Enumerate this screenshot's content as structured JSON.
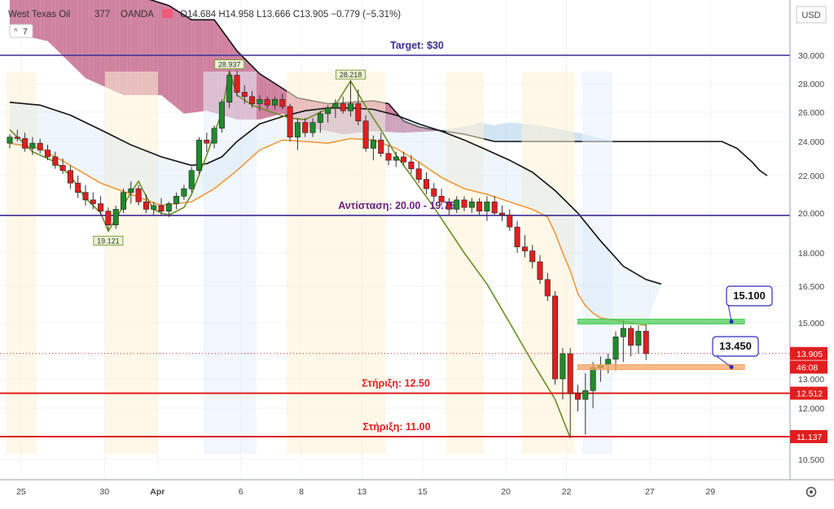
{
  "header": {
    "symbol": "West Texas Oil",
    "timeframe": "377",
    "broker": "OANDA",
    "ohlc_text": "O14.684 H14.958 L13.666 C13.905 −0.779 (−5.31%)",
    "indicator_badge": "7",
    "currency": "USD"
  },
  "chart_data": {
    "type": "candlestick",
    "title": "West Texas Oil",
    "x_ticks": [
      {
        "label": "25",
        "bar": 1.5
      },
      {
        "label": "30",
        "bar": 12.5
      },
      {
        "label": "Apr",
        "bar": 19.5
      },
      {
        "label": "6",
        "bar": 30.5
      },
      {
        "label": "8",
        "bar": 38.5
      },
      {
        "label": "13",
        "bar": 46.5
      },
      {
        "label": "15",
        "bar": 54.5
      },
      {
        "label": "20",
        "bar": 65.5
      },
      {
        "label": "22",
        "bar": 73.5
      },
      {
        "label": "27",
        "bar": 84.5
      },
      {
        "label": "29",
        "bar": 92.5
      }
    ],
    "y_ticks": [
      10.5,
      12.0,
      13.0,
      15.0,
      16.5,
      18.0,
      20.0,
      22.0,
      24.0,
      26.0,
      28.0,
      30.0
    ],
    "price_tags": [
      {
        "label": "13.905",
        "value": 13.905,
        "color": "#e01f1f"
      },
      {
        "label": "46:08",
        "value": 13.42,
        "color": "#e01f1f"
      },
      {
        "label": "12.512",
        "value": 12.512,
        "color": "#e01f1f"
      },
      {
        "label": "11.137",
        "value": 11.137,
        "color": "#e01f1f"
      }
    ],
    "candles": [
      [
        23.9,
        24.5,
        23.6,
        24.3
      ],
      [
        24.3,
        24.8,
        24.0,
        24.2
      ],
      [
        24.2,
        24.6,
        23.4,
        23.6
      ],
      [
        23.6,
        24.3,
        23.2,
        23.9
      ],
      [
        23.9,
        24.2,
        23.3,
        23.5
      ],
      [
        23.5,
        23.8,
        22.9,
        23.1
      ],
      [
        23.1,
        23.4,
        22.4,
        22.6
      ],
      [
        22.6,
        23.0,
        22.1,
        22.3
      ],
      [
        22.3,
        22.6,
        21.3,
        21.6
      ],
      [
        21.6,
        22.0,
        20.8,
        21.1
      ],
      [
        21.1,
        21.5,
        20.4,
        20.7
      ],
      [
        20.7,
        21.1,
        20.2,
        20.5
      ],
      [
        20.5,
        20.9,
        19.9,
        20.1
      ],
      [
        20.1,
        20.3,
        19.1,
        19.4
      ],
      [
        19.4,
        20.4,
        19.2,
        20.2
      ],
      [
        20.2,
        21.3,
        20.0,
        21.1
      ],
      [
        21.1,
        21.7,
        20.5,
        21.3
      ],
      [
        21.3,
        21.5,
        20.4,
        20.6
      ],
      [
        20.6,
        21.0,
        20.0,
        20.2
      ],
      [
        20.2,
        20.6,
        19.9,
        20.4
      ],
      [
        20.4,
        20.8,
        19.9,
        20.1
      ],
      [
        20.1,
        20.6,
        19.8,
        20.5
      ],
      [
        20.5,
        21.1,
        20.2,
        20.9
      ],
      [
        20.9,
        21.5,
        20.7,
        21.3
      ],
      [
        21.3,
        22.5,
        21.1,
        22.3
      ],
      [
        22.3,
        24.3,
        22.1,
        24.1
      ],
      [
        24.1,
        24.6,
        23.4,
        23.9
      ],
      [
        23.9,
        25.1,
        23.6,
        24.9
      ],
      [
        24.9,
        26.9,
        24.6,
        26.7
      ],
      [
        26.7,
        28.9,
        26.3,
        28.6
      ],
      [
        28.6,
        28.9,
        27.1,
        27.4
      ],
      [
        27.4,
        27.9,
        26.6,
        27.1
      ],
      [
        27.1,
        27.5,
        26.3,
        26.6
      ],
      [
        26.6,
        27.2,
        26.1,
        26.9
      ],
      [
        26.9,
        27.1,
        26.2,
        26.5
      ],
      [
        26.5,
        27.1,
        26.2,
        26.9
      ],
      [
        26.9,
        27.3,
        26.2,
        26.4
      ],
      [
        26.4,
        26.6,
        24.0,
        24.3
      ],
      [
        24.3,
        25.6,
        23.5,
        25.3
      ],
      [
        25.3,
        25.6,
        24.3,
        24.6
      ],
      [
        24.6,
        25.6,
        24.3,
        25.3
      ],
      [
        25.3,
        26.1,
        24.6,
        25.9
      ],
      [
        25.9,
        26.5,
        25.3,
        26.3
      ],
      [
        26.3,
        26.9,
        25.6,
        26.6
      ],
      [
        26.6,
        27.1,
        25.9,
        26.1
      ],
      [
        26.1,
        28.2,
        25.7,
        26.6
      ],
      [
        26.6,
        27.6,
        25.1,
        25.4
      ],
      [
        25.4,
        25.8,
        23.4,
        23.6
      ],
      [
        23.6,
        24.4,
        22.9,
        24.1
      ],
      [
        24.1,
        24.6,
        23.1,
        23.3
      ],
      [
        23.3,
        23.8,
        22.6,
        22.9
      ],
      [
        22.9,
        23.4,
        22.5,
        23.1
      ],
      [
        23.1,
        23.4,
        22.6,
        22.8
      ],
      [
        22.8,
        23.2,
        22.1,
        22.4
      ],
      [
        22.4,
        22.8,
        21.6,
        21.8
      ],
      [
        21.8,
        22.2,
        21.0,
        21.3
      ],
      [
        21.3,
        21.6,
        20.6,
        20.9
      ],
      [
        20.9,
        21.3,
        20.4,
        20.6
      ],
      [
        20.6,
        20.8,
        19.9,
        20.2
      ],
      [
        20.2,
        20.9,
        20.0,
        20.7
      ],
      [
        20.7,
        20.9,
        20.1,
        20.3
      ],
      [
        20.3,
        20.8,
        20.0,
        20.6
      ],
      [
        20.6,
        20.8,
        19.9,
        20.1
      ],
      [
        20.1,
        20.9,
        19.6,
        20.6
      ],
      [
        20.6,
        20.9,
        19.9,
        20.0
      ],
      [
        20.0,
        20.4,
        19.6,
        19.9
      ],
      [
        19.9,
        20.2,
        19.1,
        19.3
      ],
      [
        19.3,
        19.6,
        18.0,
        18.3
      ],
      [
        18.3,
        18.9,
        17.8,
        18.1
      ],
      [
        18.1,
        18.4,
        17.3,
        17.6
      ],
      [
        17.6,
        17.9,
        16.6,
        16.8
      ],
      [
        16.8,
        17.1,
        15.9,
        16.1
      ],
      [
        16.1,
        16.3,
        12.8,
        13.0
      ],
      [
        13.0,
        14.1,
        12.3,
        13.9
      ],
      [
        13.9,
        14.1,
        11.1,
        12.5
      ],
      [
        12.5,
        12.8,
        11.9,
        12.3
      ],
      [
        12.3,
        13.2,
        11.2,
        12.6
      ],
      [
        12.6,
        13.6,
        12.0,
        13.4
      ],
      [
        13.4,
        13.8,
        12.9,
        13.5
      ],
      [
        13.5,
        13.9,
        13.2,
        13.7
      ],
      [
        13.7,
        14.7,
        13.3,
        14.5
      ],
      [
        14.5,
        15.1,
        13.6,
        14.8
      ],
      [
        14.8,
        14.9,
        13.8,
        14.2
      ],
      [
        14.2,
        14.9,
        13.9,
        14.7
      ],
      [
        14.7,
        14.96,
        13.67,
        13.9
      ]
    ],
    "ichimoku": {
      "span_a": [
        [
          0,
          31.6
        ],
        [
          5,
          31.0
        ],
        [
          10,
          28.4
        ],
        [
          15,
          27.2
        ],
        [
          20,
          27.2
        ],
        [
          23,
          25.9
        ],
        [
          26,
          26.1
        ],
        [
          30,
          25.5
        ],
        [
          33,
          25.5
        ],
        [
          36,
          25.9
        ],
        [
          40,
          24.9
        ],
        [
          44,
          24.5
        ],
        [
          48,
          24.7
        ],
        [
          52,
          24.6
        ],
        [
          56,
          24.7
        ],
        [
          58,
          24.9
        ],
        [
          60,
          25.0
        ],
        [
          62,
          25.3
        ],
        [
          64,
          25.1
        ],
        [
          66,
          25.3
        ],
        [
          68,
          25.2
        ],
        [
          70,
          25.1
        ],
        [
          72,
          24.9
        ],
        [
          74,
          24.7
        ],
        [
          76,
          24.5
        ],
        [
          78,
          24.2
        ],
        [
          80,
          24.0
        ],
        [
          82,
          24.0
        ],
        [
          86,
          24.0
        ],
        [
          90,
          24.0
        ],
        [
          94,
          24.0
        ],
        [
          96,
          23.6
        ],
        [
          98,
          22.8
        ],
        [
          99,
          22.3
        ],
        [
          100,
          22.0
        ],
        [
          101,
          21.0
        ],
        [
          102,
          20.0
        ]
      ],
      "span_b": [
        [
          0,
          35.5
        ],
        [
          5,
          35.0
        ],
        [
          10,
          34.5
        ],
        [
          15,
          34.0
        ],
        [
          18,
          34.0
        ],
        [
          21,
          33.5
        ],
        [
          24,
          32.5
        ],
        [
          27,
          32.5
        ],
        [
          30,
          30.3
        ],
        [
          33,
          28.7
        ],
        [
          38,
          27.0
        ],
        [
          42,
          26.6
        ],
        [
          48,
          26.8
        ],
        [
          50,
          26.6
        ],
        [
          52,
          25.4
        ],
        [
          54,
          25.0
        ],
        [
          56,
          24.8
        ],
        [
          60,
          24.5
        ],
        [
          64,
          24.0
        ],
        [
          70,
          24.0
        ],
        [
          80,
          24.0
        ],
        [
          90,
          24.0
        ],
        [
          94,
          24.0
        ],
        [
          96,
          23.6
        ],
        [
          98,
          22.8
        ],
        [
          99,
          22.3
        ],
        [
          100,
          22.0
        ]
      ],
      "bull_fill": "#a9cdea",
      "bear_fill": "#c36388"
    },
    "sma_black": [
      [
        0,
        26.7
      ],
      [
        4,
        26.5
      ],
      [
        8,
        25.8
      ],
      [
        12,
        24.8
      ],
      [
        16,
        23.8
      ],
      [
        20,
        23.1
      ],
      [
        24,
        22.6
      ],
      [
        26,
        22.7
      ],
      [
        28,
        23.1
      ],
      [
        30,
        24.0
      ],
      [
        33,
        25.2
      ],
      [
        36,
        25.7
      ],
      [
        39,
        26.1
      ],
      [
        42,
        26.3
      ],
      [
        45,
        26.3
      ],
      [
        48,
        26.2
      ],
      [
        51,
        25.8
      ],
      [
        54,
        25.2
      ],
      [
        57,
        24.7
      ],
      [
        60,
        24.1
      ],
      [
        63,
        23.5
      ],
      [
        66,
        22.9
      ],
      [
        69,
        22.2
      ],
      [
        72,
        21.2
      ],
      [
        75,
        20.0
      ],
      [
        78,
        18.6
      ],
      [
        81,
        17.4
      ],
      [
        84,
        16.8
      ],
      [
        86,
        16.6
      ]
    ],
    "ema_orange": [
      [
        0,
        23.9
      ],
      [
        4,
        23.6
      ],
      [
        8,
        22.6
      ],
      [
        12,
        21.6
      ],
      [
        16,
        21.0
      ],
      [
        20,
        20.4
      ],
      [
        24,
        20.6
      ],
      [
        27,
        21.3
      ],
      [
        30,
        22.3
      ],
      [
        33,
        23.5
      ],
      [
        36,
        24.1
      ],
      [
        39,
        24.0
      ],
      [
        42,
        23.9
      ],
      [
        45,
        24.2
      ],
      [
        48,
        24.1
      ],
      [
        51,
        23.6
      ],
      [
        54,
        22.8
      ],
      [
        57,
        21.9
      ],
      [
        60,
        21.3
      ],
      [
        63,
        21.0
      ],
      [
        66,
        20.6
      ],
      [
        69,
        20.2
      ],
      [
        71,
        19.8
      ],
      [
        72,
        19.0
      ],
      [
        73,
        18.0
      ],
      [
        74,
        17.2
      ],
      [
        75,
        16.2
      ],
      [
        76,
        15.7
      ],
      [
        77,
        15.4
      ],
      [
        78,
        15.2
      ],
      [
        80,
        15.1
      ],
      [
        82,
        15.0
      ],
      [
        84,
        14.9
      ]
    ],
    "zigzag": [
      [
        0,
        24.8
      ],
      [
        3,
        23.4
      ],
      [
        6,
        22.8
      ],
      [
        8,
        22.0
      ],
      [
        9,
        21.4
      ],
      [
        10,
        20.8
      ],
      [
        12,
        20.0
      ],
      [
        13,
        19.1
      ],
      [
        14,
        19.7
      ],
      [
        16,
        21.1
      ],
      [
        17,
        21.7
      ],
      [
        18,
        20.9
      ],
      [
        19,
        20.2
      ],
      [
        20,
        20.0
      ],
      [
        21,
        19.9
      ],
      [
        23,
        20.3
      ],
      [
        24,
        21.0
      ],
      [
        26,
        23.2
      ],
      [
        28,
        26.0
      ],
      [
        29,
        28.9
      ],
      [
        30,
        27.2
      ],
      [
        32,
        26.5
      ],
      [
        34,
        26.1
      ],
      [
        37,
        25.6
      ],
      [
        39,
        25.5
      ],
      [
        41,
        26.0
      ],
      [
        43,
        26.5
      ],
      [
        45,
        28.2
      ],
      [
        47,
        26.4
      ],
      [
        49,
        24.8
      ],
      [
        51,
        23.2
      ],
      [
        53,
        22.0
      ],
      [
        56,
        20.3
      ],
      [
        60,
        18.0
      ],
      [
        63,
        16.6
      ],
      [
        66,
        15.0
      ],
      [
        69,
        13.6
      ],
      [
        72,
        12.3
      ],
      [
        74,
        11.1
      ]
    ],
    "horizontal_lines": [
      {
        "label": "Target: $30",
        "value": 30.0,
        "color": "#3d2c96",
        "label_color": "#3d2c96"
      },
      {
        "label": "Αντίσταση: 20.00 - 19.75",
        "value": 19.88,
        "color": "#3d2c96",
        "label_color": "#6a1d7e"
      },
      {
        "label": "Στήριξη: 12.50",
        "value": 12.512,
        "color": "#e01f1f",
        "label_color": "#e01f1f"
      },
      {
        "label": "Στήριξη: 11.00",
        "value": 11.137,
        "color": "#e01f1f",
        "label_color": "#e01f1f"
      }
    ],
    "pivot_labels": [
      {
        "label": "28.937",
        "bar": 29,
        "value": 28.937
      },
      {
        "label": "28.218",
        "bar": 45,
        "value": 28.218
      },
      {
        "label": "19.121",
        "bar": 13,
        "value": 19.121
      }
    ],
    "zones": [
      {
        "label": "15.100",
        "value": 15.05,
        "color": "#4cce5a"
      },
      {
        "label": "13.450",
        "value": 13.42,
        "color": "#f4a460"
      }
    ],
    "dotted_last_price": 13.905,
    "y_scale": "custom",
    "grid": true
  }
}
